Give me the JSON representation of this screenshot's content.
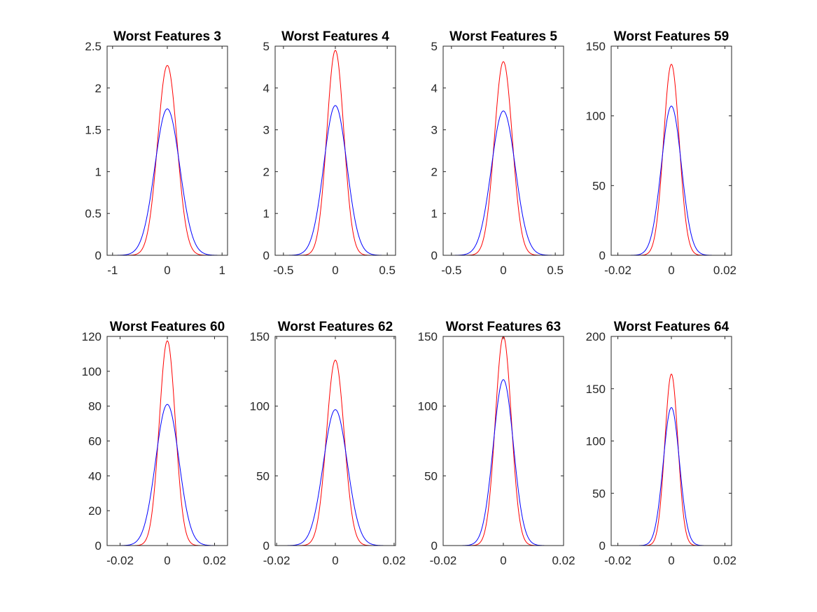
{
  "chart_data": [
    {
      "type": "line",
      "title": "Worst Features 3",
      "xlim": [
        -1.1,
        1.1
      ],
      "ylim": [
        0,
        2.5
      ],
      "xticks": [
        -1,
        0,
        1
      ],
      "xtick_labels": [
        "-1",
        "0",
        "1"
      ],
      "yticks": [
        0,
        0.5,
        1,
        1.5,
        2,
        2.5
      ],
      "ytick_labels": [
        "0",
        "0.5",
        "1",
        "1.5",
        "2",
        "2.5"
      ],
      "series": [
        {
          "color": "#ff0000",
          "mean": 0.0,
          "peak": 2.27
        },
        {
          "color": "#0000ff",
          "mean": 0.0,
          "peak": 1.75
        }
      ]
    },
    {
      "type": "line",
      "title": "Worst Features 4",
      "xlim": [
        -0.58,
        0.58
      ],
      "ylim": [
        0,
        5
      ],
      "xticks": [
        -0.5,
        0,
        0.5
      ],
      "xtick_labels": [
        "-0.5",
        "0",
        "0.5"
      ],
      "yticks": [
        0,
        1,
        2,
        3,
        4,
        5
      ],
      "ytick_labels": [
        "0",
        "1",
        "2",
        "3",
        "4",
        "5"
      ],
      "series": [
        {
          "color": "#ff0000",
          "mean": 0.0,
          "peak": 4.9
        },
        {
          "color": "#0000ff",
          "mean": 0.0,
          "peak": 3.58
        }
      ]
    },
    {
      "type": "line",
      "title": "Worst Features 5",
      "xlim": [
        -0.58,
        0.58
      ],
      "ylim": [
        0,
        5
      ],
      "xticks": [
        -0.5,
        0,
        0.5
      ],
      "xtick_labels": [
        "-0.5",
        "0",
        "0.5"
      ],
      "yticks": [
        0,
        1,
        2,
        3,
        4,
        5
      ],
      "ytick_labels": [
        "0",
        "1",
        "2",
        "3",
        "4",
        "5"
      ],
      "series": [
        {
          "color": "#ff0000",
          "mean": 0.0,
          "peak": 4.63
        },
        {
          "color": "#0000ff",
          "mean": 0.0,
          "peak": 3.45
        }
      ]
    },
    {
      "type": "line",
      "title": "Worst Features 59",
      "xlim": [
        -0.0225,
        0.0225
      ],
      "ylim": [
        0,
        150
      ],
      "xticks": [
        -0.02,
        0,
        0.02
      ],
      "xtick_labels": [
        "-0.02",
        "0",
        "0.02"
      ],
      "yticks": [
        0,
        50,
        100,
        150
      ],
      "ytick_labels": [
        "0",
        "50",
        "100",
        "150"
      ],
      "series": [
        {
          "color": "#ff0000",
          "mean": 0.0,
          "peak": 137
        },
        {
          "color": "#0000ff",
          "mean": 0.0,
          "peak": 107
        }
      ]
    },
    {
      "type": "line",
      "title": "Worst Features 60",
      "xlim": [
        -0.0255,
        0.0255
      ],
      "ylim": [
        0,
        120
      ],
      "xticks": [
        -0.02,
        0,
        0.02
      ],
      "xtick_labels": [
        "-0.02",
        "0",
        "0.02"
      ],
      "yticks": [
        0,
        20,
        40,
        60,
        80,
        100,
        120
      ],
      "ytick_labels": [
        "0",
        "20",
        "40",
        "60",
        "80",
        "100",
        "120"
      ],
      "series": [
        {
          "color": "#ff0000",
          "mean": 0.0,
          "peak": 117.5
        },
        {
          "color": "#0000ff",
          "mean": 0.0,
          "peak": 81
        }
      ]
    },
    {
      "type": "line",
      "title": "Worst Features 62",
      "xlim": [
        -0.0205,
        0.0205
      ],
      "ylim": [
        0,
        150
      ],
      "xticks": [
        -0.02,
        0,
        0.02
      ],
      "xtick_labels": [
        "-0.02",
        "0",
        "0.02"
      ],
      "yticks": [
        0,
        50,
        100,
        150
      ],
      "ytick_labels": [
        "0",
        "50",
        "100",
        "150"
      ],
      "series": [
        {
          "color": "#ff0000",
          "mean": 0.0,
          "peak": 133
        },
        {
          "color": "#0000ff",
          "mean": 0.0,
          "peak": 97.5
        }
      ]
    },
    {
      "type": "line",
      "title": "Worst Features 63",
      "xlim": [
        -0.02,
        0.02
      ],
      "ylim": [
        0,
        150
      ],
      "xticks": [
        -0.02,
        0,
        0.02
      ],
      "xtick_labels": [
        "-0.02",
        "0",
        "0.02"
      ],
      "yticks": [
        0,
        50,
        100,
        150
      ],
      "ytick_labels": [
        "0",
        "50",
        "100",
        "150"
      ],
      "series": [
        {
          "color": "#ff0000",
          "mean": 0.0,
          "peak": 150
        },
        {
          "color": "#0000ff",
          "mean": 0.0,
          "peak": 119
        }
      ]
    },
    {
      "type": "line",
      "title": "Worst Features 64",
      "xlim": [
        -0.0225,
        0.0225
      ],
      "ylim": [
        0,
        200
      ],
      "xticks": [
        -0.02,
        0,
        0.02
      ],
      "xtick_labels": [
        "-0.02",
        "0",
        "0.02"
      ],
      "yticks": [
        0,
        50,
        100,
        150,
        200
      ],
      "ytick_labels": [
        "0",
        "50",
        "100",
        "150",
        "200"
      ],
      "series": [
        {
          "color": "#ff0000",
          "mean": 0.0,
          "peak": 164
        },
        {
          "color": "#0000ff",
          "mean": 0.0,
          "peak": 132
        }
      ]
    }
  ]
}
